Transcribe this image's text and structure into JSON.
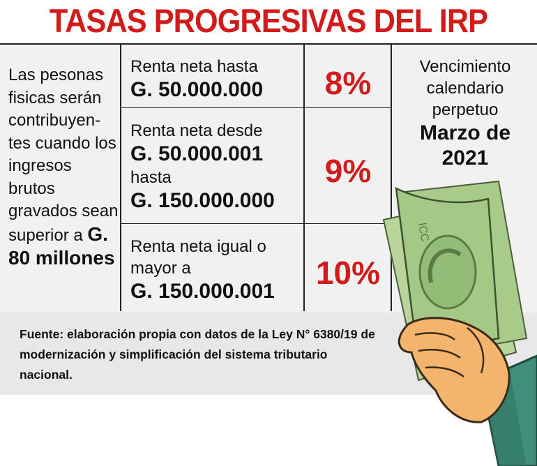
{
  "title": "TASAS PROGRESIVAS DEL IRP",
  "left": {
    "text": "Las pesonas fisicas serán contribuyen-tes cuando los ingresos brutos gravados sean superior a",
    "amount": "G. 80 millones"
  },
  "rows": [
    {
      "line1": "Renta neta hasta",
      "line2": "G. 50.000.000",
      "line3": "",
      "line4": "",
      "rate": "8%"
    },
    {
      "line1": "Renta neta desde",
      "line2": "G. 50.000.001",
      "line3": "hasta",
      "line4": "G. 150.000.000",
      "rate": "9%"
    },
    {
      "line1": "Renta neta igual o",
      "line2": "mayor a",
      "line3": "G. 150.000.001",
      "line4": "",
      "rate": "10%"
    }
  ],
  "vencimiento": {
    "label": "Vencimiento calendario perpetuo",
    "date": "Marzo de 2021"
  },
  "banknote_text": "ICC",
  "footer": "Fuente: elaboración propia con datos de la Ley N° 6380/19 de modernización y simplificación del sistema tributario nacional.",
  "colors": {
    "accent": "#d21c1c",
    "money": "#a8c98a",
    "skin": "#f3b56e",
    "sleeve": "#3f8f7a"
  }
}
